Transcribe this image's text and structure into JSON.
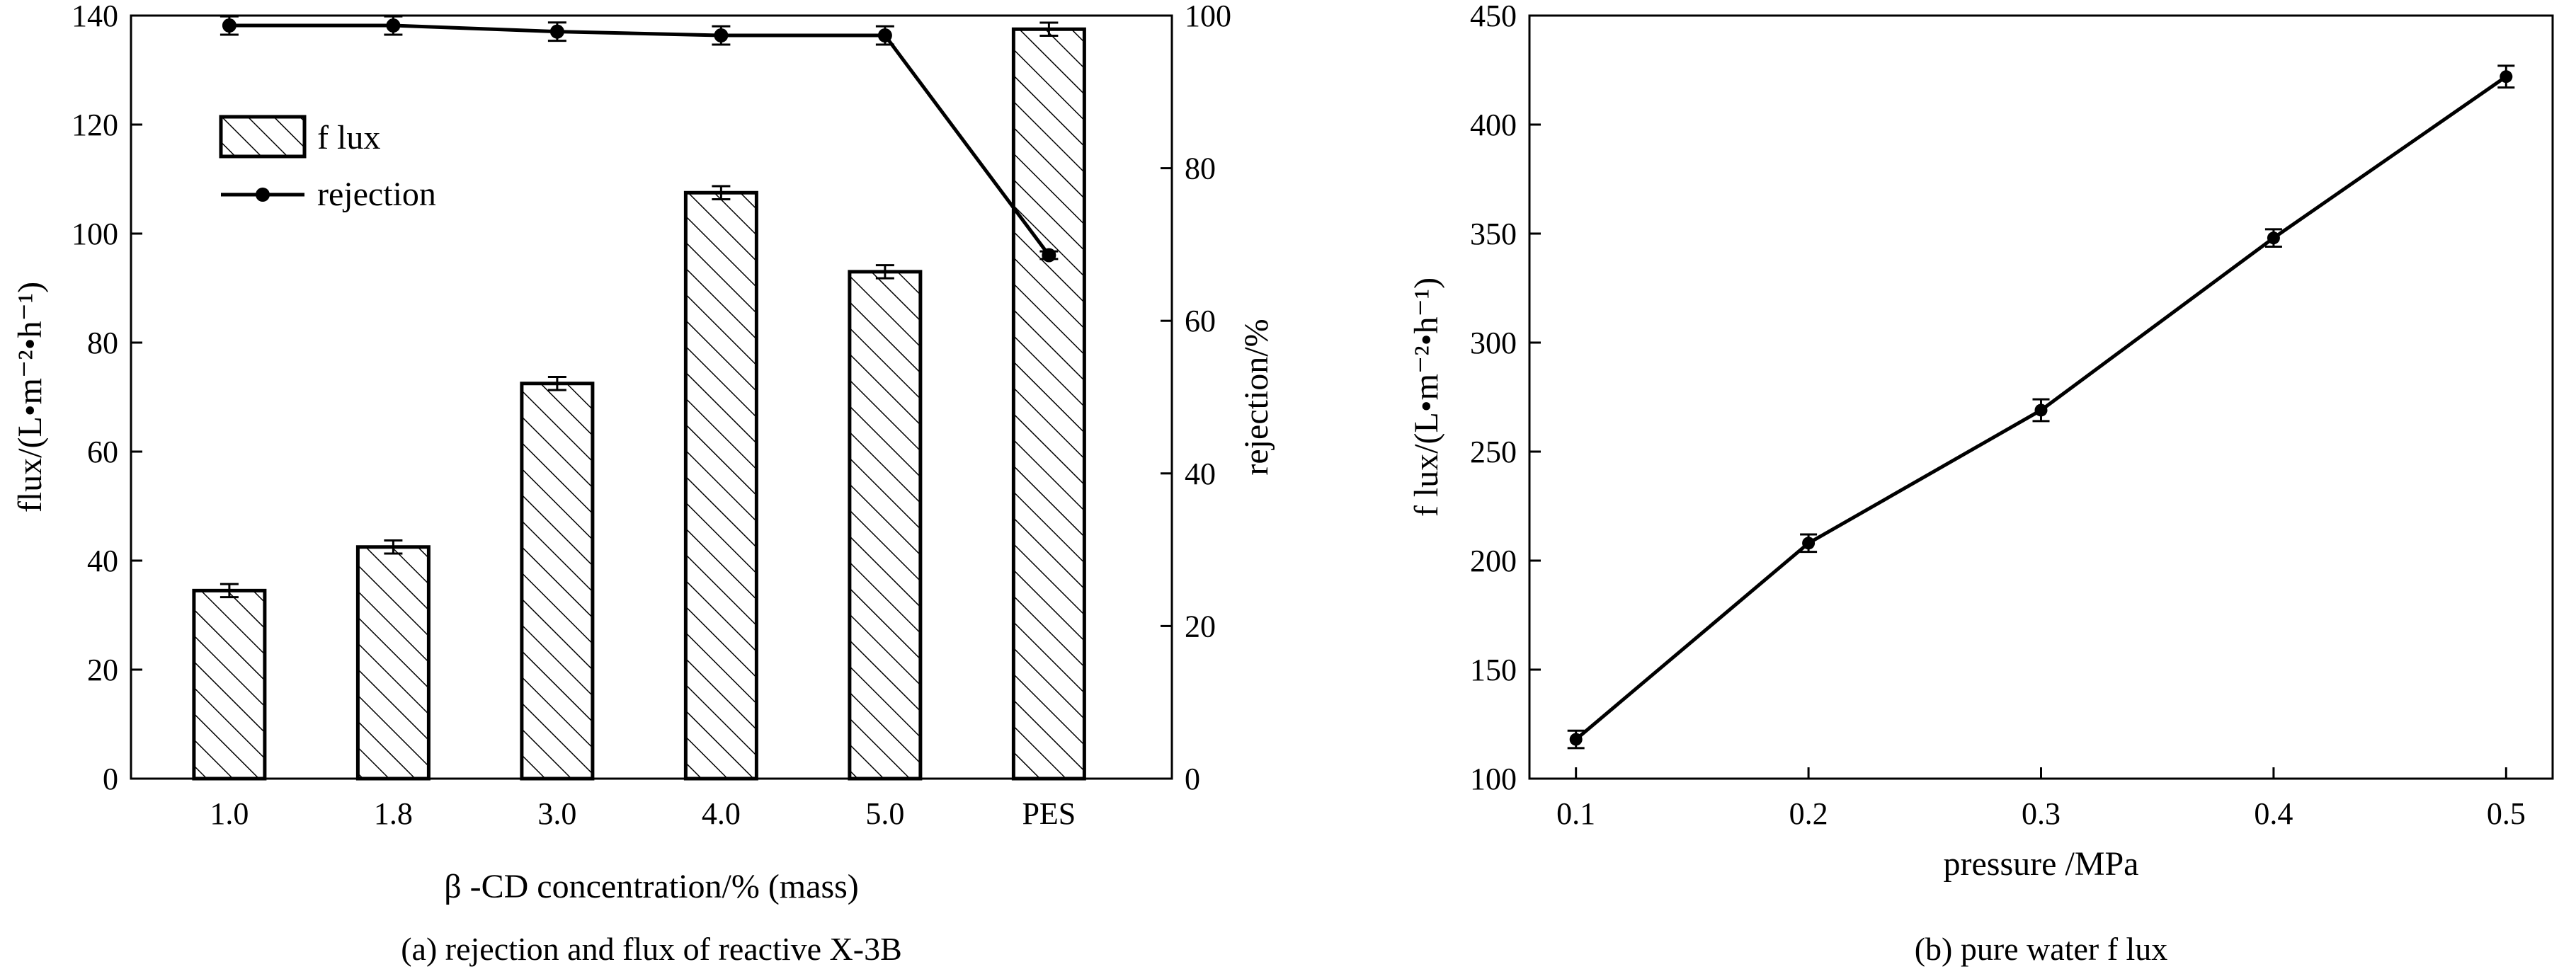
{
  "chart_data": [
    {
      "type": "bar",
      "title": "",
      "caption": "(a) rejection and flux of reactive X-3B",
      "xlabel": "β -CD concentration/% (mass)",
      "ylabel": "flux/(L•m⁻²•h⁻¹)",
      "y2label": "rejection/%",
      "categories": [
        "1.0",
        "1.8",
        "3.0",
        "4.0",
        "5.0",
        "PES"
      ],
      "ylim": [
        0,
        140
      ],
      "y2lim": [
        0,
        100
      ],
      "yticks": [
        0,
        20,
        40,
        60,
        80,
        100,
        120,
        140
      ],
      "y2ticks": [
        0,
        20,
        40,
        60,
        80,
        100
      ],
      "legend_position": "top-left",
      "grid": false,
      "series": [
        {
          "name": "f lux",
          "type": "bar",
          "axis": "left",
          "values": [
            34.5,
            42.5,
            72.5,
            107.5,
            93,
            137.5
          ],
          "errors": [
            1.2,
            1.2,
            1.2,
            1.2,
            1.2,
            1.2
          ]
        },
        {
          "name": "rejection",
          "type": "line",
          "axis": "right",
          "values": [
            98.7,
            98.7,
            97.9,
            97.4,
            97.4,
            68.6
          ],
          "errors": [
            1.2,
            1.2,
            1.2,
            1.2,
            1.2,
            0.5
          ]
        }
      ]
    },
    {
      "type": "line",
      "title": "",
      "caption": "(b) pure water f lux",
      "xlabel": "pressure /MPa",
      "ylabel": "f lux/(L•m⁻²•h⁻¹)",
      "x": [
        0.1,
        0.2,
        0.3,
        0.4,
        0.5
      ],
      "xlim": [
        0.08,
        0.52
      ],
      "xticks": [
        "0.1",
        "0.2",
        "0.3",
        "0.4",
        "0.5"
      ],
      "ylim": [
        100,
        450
      ],
      "yticks": [
        100,
        150,
        200,
        250,
        300,
        350,
        400,
        450
      ],
      "grid": false,
      "series": [
        {
          "values": [
            118,
            208,
            269,
            348,
            422
          ],
          "errors": [
            4,
            4,
            5,
            4,
            5
          ]
        }
      ]
    }
  ]
}
